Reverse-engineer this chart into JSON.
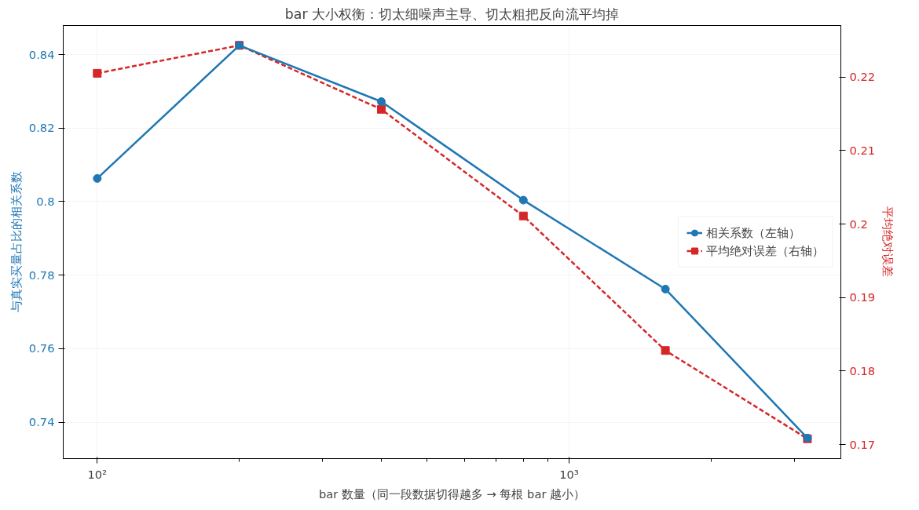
{
  "chart_data": {
    "type": "line",
    "title": "bar 大小权衡：切太细噪声主导、切太粗把反向流平均掉",
    "xlabel": "bar 数量（同一段数据切得越多 → 每根 bar 越小）",
    "ylabel": "与真实买量占比的相关系数",
    "y2label": "平均绝对误差",
    "x": [
      100,
      200,
      400,
      800,
      1600,
      3200
    ],
    "series": [
      {
        "name": "相关系数（左轴）",
        "color": "#1f77b4",
        "marker": "circle",
        "line_style": "solid",
        "values": [
          0.8063,
          0.8425,
          0.8272,
          0.8004,
          0.7762,
          0.7357
        ]
      },
      {
        "name": "平均绝对误差（右轴）",
        "color": "#d62728",
        "marker": "square",
        "line_style": "dashed",
        "axis": "y2",
        "values": [
          0.2205,
          0.2243,
          0.2156,
          0.2011,
          0.1828,
          0.1708
        ]
      }
    ],
    "log": "x",
    "xlim": [
      84.7,
      3767
    ],
    "xticks": [
      {
        "value": 100,
        "label": "10²"
      },
      {
        "value": 200,
        "label": null
      },
      {
        "value": 300,
        "label": null
      },
      {
        "value": 400,
        "label": null
      },
      {
        "value": 500,
        "label": null
      },
      {
        "value": 600,
        "label": null
      },
      {
        "value": 700,
        "label": null
      },
      {
        "value": 800,
        "label": null
      },
      {
        "value": 900,
        "label": null
      },
      {
        "value": 1000,
        "label": "10³"
      },
      {
        "value": 2000,
        "label": null
      },
      {
        "value": 3000,
        "label": null
      }
    ],
    "ylim": [
      0.7301,
      0.8479
    ],
    "yticks": [
      0.74,
      0.76,
      0.78,
      0.8,
      0.82,
      0.84
    ],
    "y2lim": [
      0.1681,
      0.227
    ],
    "y2ticks": [
      0.17,
      0.18,
      0.19,
      0.2,
      0.21,
      0.22
    ],
    "grid": true,
    "legend": "right"
  }
}
